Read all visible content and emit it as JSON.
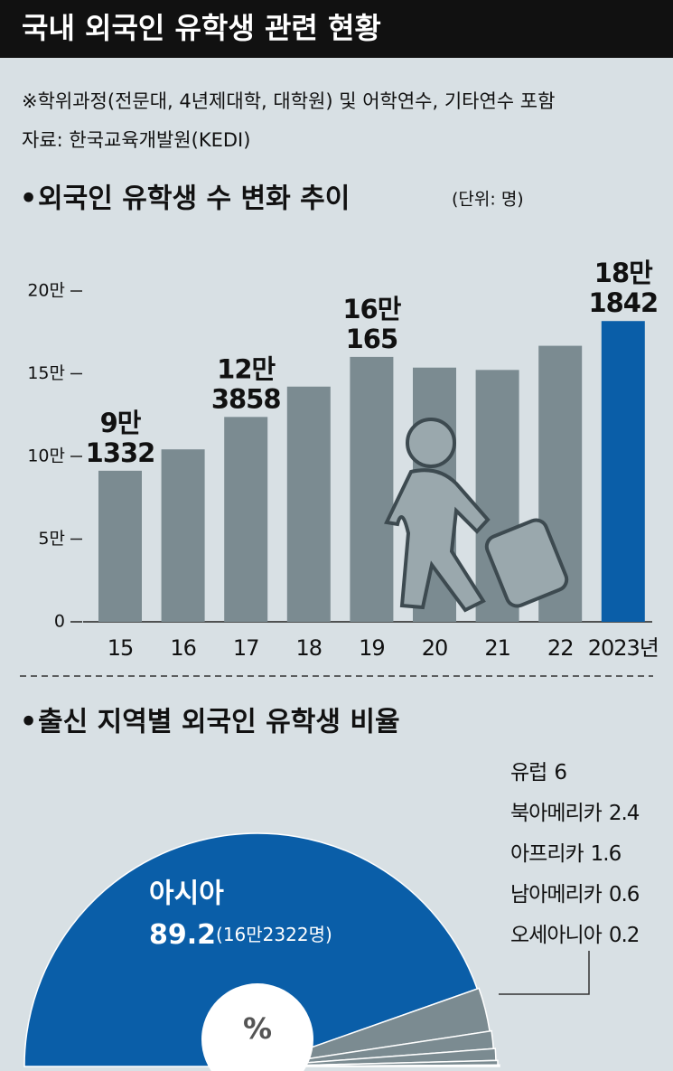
{
  "title": "국내 외국인 유학생 관련 현황",
  "notes": [
    "※학위과정(전문대, 4년제대학, 대학원) 및 어학연수, 기타연수 포함",
    "자료: 한국교육개발원(KEDI)"
  ],
  "chart_data": [
    {
      "type": "bar",
      "title": "외국인 유학생 수 변화 추이",
      "unit": "(단위: 명)",
      "categories": [
        "15",
        "16",
        "17",
        "18",
        "19",
        "20",
        "21",
        "22",
        "2023년"
      ],
      "values": [
        91332,
        104262,
        123858,
        142205,
        160165,
        153695,
        152281,
        166892,
        181842
      ],
      "value_labels": [
        [
          "9만",
          "1332"
        ],
        null,
        [
          "12만",
          "3858"
        ],
        null,
        [
          "16만",
          "165"
        ],
        null,
        null,
        null,
        [
          "18만",
          "1842"
        ]
      ],
      "colors": [
        "#7b8b91",
        "#7b8b91",
        "#7b8b91",
        "#7b8b91",
        "#7b8b91",
        "#7b8b91",
        "#7b8b91",
        "#7b8b91",
        "#0a5ea8"
      ],
      "ylim": [
        0,
        200000
      ],
      "yticks": [
        0,
        {
          "value": 50000,
          "label": "5만"
        },
        {
          "value": 100000,
          "label": "10만"
        },
        {
          "value": 150000,
          "label": "15만"
        },
        {
          "value": 200000,
          "label": "20만"
        }
      ]
    },
    {
      "type": "pie",
      "title": "출신 지역별 외국인 유학생 비율",
      "center_label": "%",
      "categories": [
        "아시아",
        "유럽",
        "북아메리카",
        "아프리카",
        "남아메리카",
        "오세아니아"
      ],
      "values": [
        89.2,
        6,
        2.4,
        1.6,
        0.6,
        0.2
      ],
      "annotation": "(16만2322명)",
      "colors": [
        "#0a5ea8",
        "#7b8b91",
        "#7b8b91",
        "#7b8b91",
        "#7b8b91",
        "#7b8b91"
      ]
    }
  ]
}
